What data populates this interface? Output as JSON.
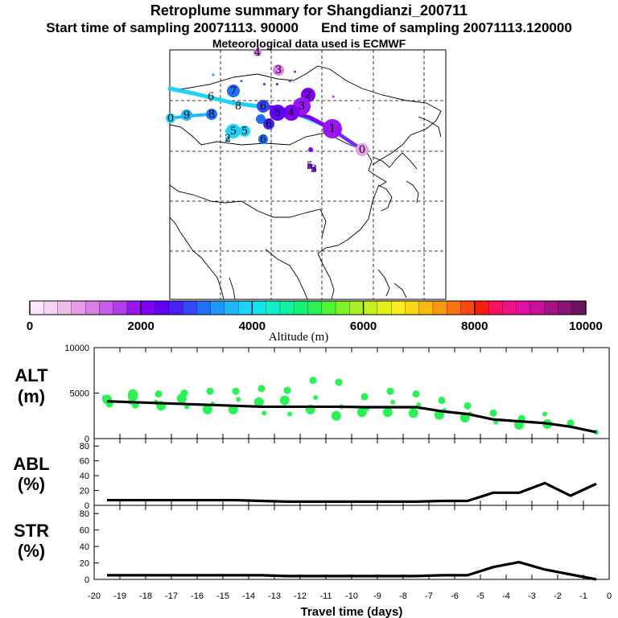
{
  "header": {
    "title": "Retroplume summary for Shangdianzi_200711",
    "start_label": "Start time of sampling 20071113. 90000",
    "end_label": "End time of sampling 20071113.120000",
    "met_label": "Meteorological data used is ECMWF"
  },
  "colorbar": {
    "axis_label": "Altitude (m)",
    "tick_labels": [
      "0",
      "2000",
      "4000",
      "6000",
      "8000",
      "10000"
    ],
    "colors": [
      "#fbe8fb",
      "#f5d2f5",
      "#efbcef",
      "#e79de9",
      "#dc7ee6",
      "#c95be6",
      "#b43be6",
      "#9617ef",
      "#8000f5",
      "#6000f7",
      "#4820f7",
      "#3448fa",
      "#2070fa",
      "#1c98fa",
      "#1cb8fa",
      "#1cd4fa",
      "#10e6f0",
      "#10f0c8",
      "#10f2a0",
      "#14f27a",
      "#28f254",
      "#50f238",
      "#80f228",
      "#a8f020",
      "#c8f01c",
      "#e6f018",
      "#f8f018",
      "#fad614",
      "#faba10",
      "#fa9810",
      "#fa7410",
      "#fa4810",
      "#fa1c10",
      "#f8105a",
      "#f01088",
      "#e010a0",
      "#c8109c",
      "#a81088",
      "#881474",
      "#6c1460"
    ]
  },
  "map": {
    "stations": [
      {
        "label": "0",
        "lon": 117.1,
        "lat": 40.6,
        "alt": 500
      },
      {
        "label": "1",
        "lon": 112.0,
        "lat": 42.5,
        "alt": 1500
      },
      {
        "label": "2",
        "lon": 103.5,
        "lat": 45.0,
        "alt": 1800
      },
      {
        "label": "3",
        "lon": 104.5,
        "lat": 46.5,
        "alt": 1800
      },
      {
        "label": "4",
        "lon": 101.0,
        "lat": 44.5,
        "alt": 2000
      },
      {
        "label": "5",
        "lon": 98.5,
        "lat": 44.5,
        "alt": 2600
      },
      {
        "label": "6",
        "lon": 94.0,
        "lat": 45.0,
        "alt": 3200
      },
      {
        "label": "7",
        "lon": 88.5,
        "lat": 46.0,
        "alt": 3400
      }
    ],
    "plume_labels": [
      "0",
      "1",
      "2",
      "3",
      "4",
      "5",
      "6",
      "7",
      "8",
      "9"
    ]
  },
  "chart_data": [
    {
      "type": "line",
      "name": "ALT",
      "title": "Retroplume summary for Shangdianzi_200711",
      "ylabel": "ALT (m)",
      "xlabel": "Travel time (days)",
      "x": [
        -19.5,
        -18.5,
        -17.5,
        -16.5,
        -15.5,
        -14.5,
        -13.5,
        -12.5,
        -11.5,
        -10.5,
        -9.5,
        -8.5,
        -7.5,
        -6.5,
        -5.5,
        -4.5,
        -3.5,
        -2.5,
        -1.5,
        -0.5
      ],
      "values": [
        4100,
        4000,
        3900,
        3800,
        3700,
        3600,
        3500,
        3500,
        3500,
        3500,
        3450,
        3450,
        3450,
        3000,
        2700,
        2100,
        1900,
        1700,
        1300,
        700
      ],
      "scatter_points": [
        [
          -19.5,
          4300
        ],
        [
          -19.4,
          3800
        ],
        [
          -19.6,
          4500
        ],
        [
          -18.5,
          4600
        ],
        [
          -18.4,
          3700
        ],
        [
          -18.6,
          4000
        ],
        [
          -18.5,
          4900
        ],
        [
          -17.5,
          4900
        ],
        [
          -17.6,
          4000
        ],
        [
          -17.4,
          3600
        ],
        [
          -16.5,
          5000
        ],
        [
          -16.4,
          3500
        ],
        [
          -16.6,
          4400
        ],
        [
          -15.5,
          5200
        ],
        [
          -15.4,
          3800
        ],
        [
          -15.6,
          3200
        ],
        [
          -14.5,
          5200
        ],
        [
          -14.4,
          4300
        ],
        [
          -14.6,
          3200
        ],
        [
          -13.5,
          5500
        ],
        [
          -13.4,
          2800
        ],
        [
          -13.6,
          4000
        ],
        [
          -12.5,
          5300
        ],
        [
          -12.4,
          2700
        ],
        [
          -12.6,
          4200
        ],
        [
          -11.5,
          6400
        ],
        [
          -11.4,
          4500
        ],
        [
          -11.6,
          3200
        ],
        [
          -10.5,
          6200
        ],
        [
          -10.4,
          3500
        ],
        [
          -10.6,
          2500
        ],
        [
          -9.5,
          4600
        ],
        [
          -9.4,
          3300
        ],
        [
          -9.6,
          2900
        ],
        [
          -8.5,
          5200
        ],
        [
          -8.4,
          4000
        ],
        [
          -8.6,
          2900
        ],
        [
          -7.5,
          4900
        ],
        [
          -7.4,
          3700
        ],
        [
          -7.6,
          2800
        ],
        [
          -6.5,
          4200
        ],
        [
          -6.4,
          3100
        ],
        [
          -6.6,
          2600
        ],
        [
          -5.5,
          3600
        ],
        [
          -5.4,
          2700
        ],
        [
          -5.6,
          2300
        ],
        [
          -4.5,
          2800
        ],
        [
          -4.4,
          1800
        ],
        [
          -3.5,
          1500
        ],
        [
          -3.4,
          2200
        ],
        [
          -2.5,
          2700
        ],
        [
          -2.4,
          1600
        ],
        [
          -1.5,
          1700
        ],
        [
          -0.5,
          700
        ]
      ],
      "xlim": [
        -20,
        0
      ],
      "ylim": [
        0,
        10000
      ],
      "y_ticks": [
        "0",
        "5000",
        "10000"
      ]
    },
    {
      "type": "line",
      "name": "ABL",
      "ylabel": "ABL (%)",
      "x": [
        -19.5,
        -18.5,
        -17.5,
        -16.5,
        -15.5,
        -14.5,
        -13.5,
        -12.5,
        -11.5,
        -10.5,
        -9.5,
        -8.5,
        -7.5,
        -6.5,
        -5.5,
        -4.5,
        -3.5,
        -2.5,
        -1.5,
        -0.5
      ],
      "values": [
        7,
        7,
        7,
        7,
        7,
        7,
        6,
        5,
        5,
        5,
        5,
        5,
        5,
        6,
        6,
        17,
        17,
        30,
        13,
        29
      ],
      "xlim": [
        -20,
        0
      ],
      "ylim": [
        0,
        90
      ],
      "y_ticks": [
        "0",
        "20",
        "40",
        "60",
        "80"
      ]
    },
    {
      "type": "line",
      "name": "STR",
      "ylabel": "STR (%)",
      "xlabel": "Travel time (days)",
      "x": [
        -19.5,
        -18.5,
        -17.5,
        -16.5,
        -15.5,
        -14.5,
        -13.5,
        -12.5,
        -11.5,
        -10.5,
        -9.5,
        -8.5,
        -7.5,
        -6.5,
        -5.5,
        -4.5,
        -3.5,
        -2.5,
        -1.5,
        -0.5
      ],
      "values": [
        5,
        5,
        5,
        5,
        5,
        5,
        5,
        4,
        4,
        4,
        4,
        4,
        4,
        5,
        5,
        15,
        21,
        12,
        6,
        0
      ],
      "xlim": [
        -20,
        0
      ],
      "ylim": [
        0,
        90
      ],
      "y_ticks": [
        "0",
        "20",
        "40",
        "60",
        "80"
      ],
      "x_ticks": [
        "-20",
        "-19",
        "-18",
        "-17",
        "-16",
        "-15",
        "-14",
        "-13",
        "-12",
        "-11",
        "-10",
        "-9",
        "-8",
        "-7",
        "-6",
        "-5",
        "-4",
        "-3",
        "-2",
        "-1",
        "0"
      ]
    }
  ],
  "labels": {
    "alt_1": "ALT",
    "alt_2": "(m)",
    "abl_1": "ABL",
    "abl_2": "(%)",
    "str_1": "STR",
    "str_2": "(%)"
  }
}
